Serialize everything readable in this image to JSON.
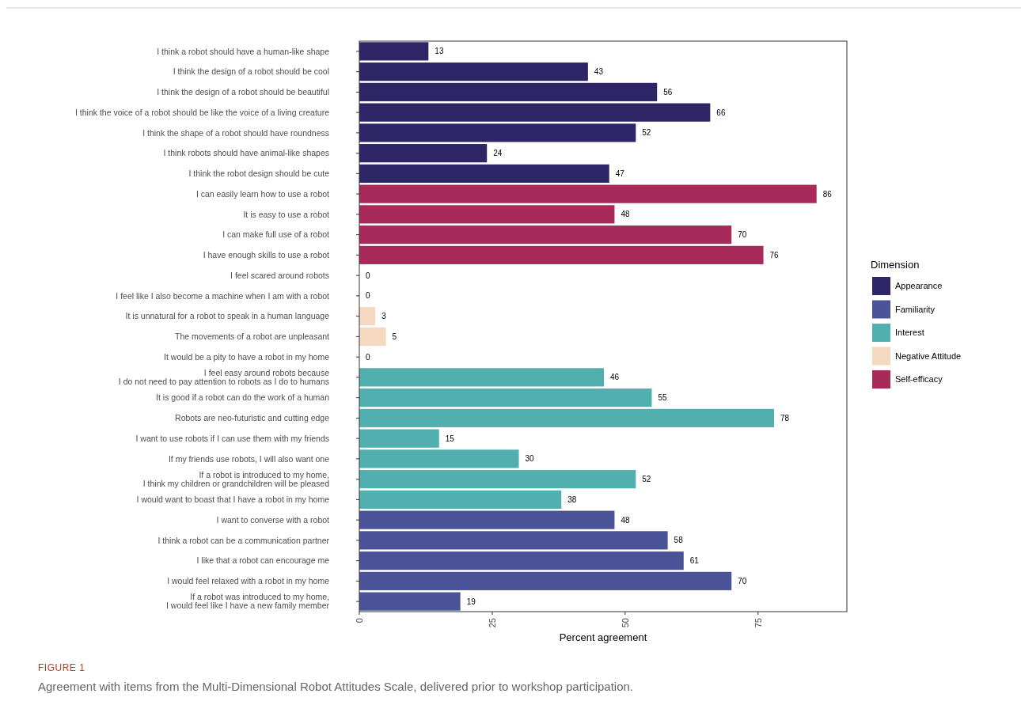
{
  "chart_data": {
    "type": "bar",
    "orientation": "horizontal",
    "xlabel": "Percent agreement",
    "legend_title": "Dimension",
    "legend": "right",
    "data_labels": true,
    "grid": false,
    "categories": [
      "I think a robot should have a human-like shape",
      "I think the design of a robot should be cool",
      "I think the design of a robot should be beautiful",
      "I think the voice of a robot should be like the voice of a living creature",
      "I think the shape of a robot should have roundness",
      "I think robots should have animal-like shapes",
      "I think the robot design should be cute",
      "I can easily learn how to use a robot",
      "It is easy to use a robot",
      "I can make full use of a robot",
      "I have enough skills to use a robot",
      "I feel scared around robots",
      "I feel like I also become a machine when I am with a robot",
      "It is unnatural for a robot to speak in a human language",
      "The movements of a robot are unpleasant",
      "It would be a pity to have a robot in my home",
      "I feel easy around robots because\nI do not need to pay attention to robots as I do to humans",
      "It is good if a robot can do the work of a human",
      "Robots are neo-futuristic and cutting edge",
      "I want to use robots if I can use them with my friends",
      "If my friends use robots, I will also want one",
      "If a robot is introduced to my home,\nI think my children or grandchildren will be pleased",
      "I would want to boast that I have a robot in my home",
      "I want to converse with a robot",
      "I think a robot can be a communication partner",
      "I like that a robot can encourage me",
      "I would feel relaxed with a robot in my home",
      "If a robot was introduced to my home,\nI would feel like I have a new family member"
    ],
    "series": [
      {
        "name": "Appearance",
        "color": "#2e2566",
        "values": [
          13,
          43,
          56,
          66,
          52,
          24,
          47,
          null,
          null,
          null,
          null,
          null,
          null,
          null,
          null,
          null,
          null,
          null,
          null,
          null,
          null,
          null,
          null,
          null,
          null,
          null,
          null,
          null
        ]
      },
      {
        "name": "Familiarity",
        "color": "#4a5298",
        "values": [
          null,
          null,
          null,
          null,
          null,
          null,
          null,
          null,
          null,
          null,
          null,
          null,
          null,
          null,
          null,
          null,
          null,
          null,
          null,
          null,
          null,
          null,
          null,
          48,
          58,
          61,
          70,
          19
        ]
      },
      {
        "name": "Interest",
        "color": "#52afb0",
        "values": [
          null,
          null,
          null,
          null,
          null,
          null,
          null,
          null,
          null,
          null,
          null,
          null,
          null,
          null,
          null,
          null,
          46,
          55,
          78,
          15,
          30,
          52,
          38,
          null,
          null,
          null,
          null,
          null
        ]
      },
      {
        "name": "Negative Attitude",
        "color": "#f4d9c0",
        "values": [
          null,
          null,
          null,
          null,
          null,
          null,
          null,
          null,
          null,
          null,
          null,
          0,
          0,
          3,
          5,
          0,
          null,
          null,
          null,
          null,
          null,
          null,
          null,
          null,
          null,
          null,
          null,
          null
        ]
      },
      {
        "name": "Self-efficacy",
        "color": "#a82a5a",
        "values": [
          null,
          null,
          null,
          null,
          null,
          null,
          null,
          86,
          48,
          70,
          76,
          null,
          null,
          null,
          null,
          null,
          null,
          null,
          null,
          null,
          null,
          null,
          null,
          null,
          null,
          null,
          null,
          null
        ]
      }
    ],
    "xlim": [
      0,
      91.7
    ],
    "xticks": [
      0,
      25,
      50,
      75
    ],
    "annotations": [
      "FIGURE 1",
      "Agreement with items from the Multi-Dimensional Robot Attitudes Scale, delivered prior to workshop participation."
    ]
  }
}
